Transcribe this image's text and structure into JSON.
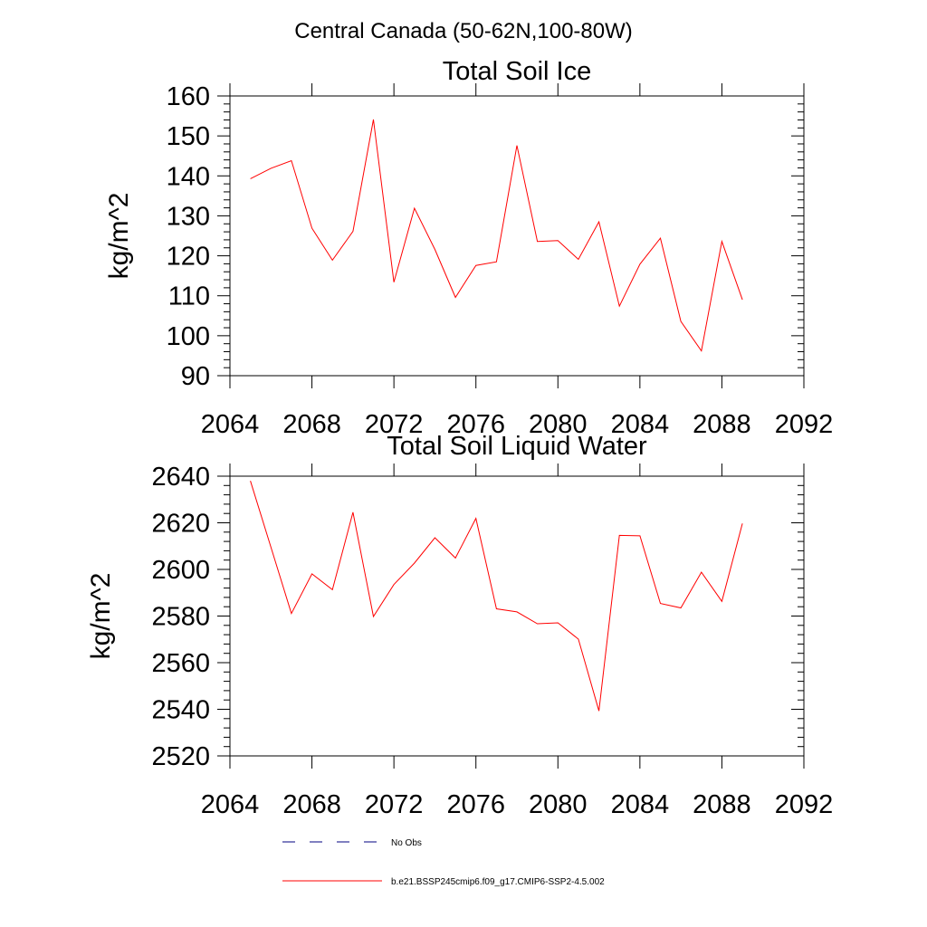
{
  "page_title": "Central Canada (50-62N,100-80W)",
  "colors": {
    "model": "#ff0000",
    "obs": "#000080",
    "axis": "#000000"
  },
  "chart_data": [
    {
      "type": "line",
      "title": "Total Soil Ice",
      "ylabel": "kg/m^2",
      "xlabel": "",
      "xlim": [
        2064,
        2092
      ],
      "ylim": [
        90,
        160
      ],
      "xticks": [
        2064,
        2068,
        2072,
        2076,
        2080,
        2084,
        2088,
        2092
      ],
      "yticks": [
        90,
        100,
        110,
        120,
        130,
        140,
        150,
        160
      ],
      "x": [
        2065,
        2066,
        2067,
        2068,
        2069,
        2070,
        2071,
        2072,
        2073,
        2074,
        2075,
        2076,
        2077,
        2078,
        2079,
        2080,
        2081,
        2082,
        2083,
        2084,
        2085,
        2086,
        2087,
        2088,
        2089
      ],
      "series": [
        {
          "name": "b.e21.BSSP245cmip6.f09_g17.CMIP6-SSP2-4.5.002",
          "values": [
            139.3,
            141.9,
            143.8,
            126.9,
            118.9,
            126.1,
            154.1,
            113.4,
            131.9,
            121.6,
            109.6,
            117.6,
            118.5,
            147.6,
            123.6,
            123.8,
            119.1,
            128.5,
            107.4,
            117.9,
            124.4,
            103.6,
            96.2,
            123.6,
            109.0
          ]
        }
      ]
    },
    {
      "type": "line",
      "title": "Total Soil Liquid Water",
      "ylabel": "kg/m^2",
      "xlabel": "",
      "xlim": [
        2064,
        2092
      ],
      "ylim": [
        2520,
        2640
      ],
      "xticks": [
        2064,
        2068,
        2072,
        2076,
        2080,
        2084,
        2088,
        2092
      ],
      "yticks": [
        2520,
        2540,
        2560,
        2580,
        2600,
        2620,
        2640
      ],
      "x": [
        2065,
        2066,
        2067,
        2068,
        2069,
        2070,
        2071,
        2072,
        2073,
        2074,
        2075,
        2076,
        2077,
        2078,
        2079,
        2080,
        2081,
        2082,
        2083,
        2084,
        2085,
        2086,
        2087,
        2088,
        2089
      ],
      "series": [
        {
          "name": "b.e21.BSSP245cmip6.f09_g17.CMIP6-SSP2-4.5.002",
          "values": [
            2638.0,
            2609.5,
            2581.1,
            2598.1,
            2591.3,
            2624.5,
            2579.8,
            2593.5,
            2602.7,
            2613.6,
            2604.9,
            2621.9,
            2583.1,
            2581.8,
            2576.7,
            2577.1,
            2570.1,
            2539.3,
            2614.6,
            2614.4,
            2585.4,
            2583.5,
            2598.8,
            2586.3,
            2619.7
          ]
        }
      ]
    }
  ],
  "legend": [
    {
      "label": "No Obs",
      "style": "dashed",
      "color": "#000080"
    },
    {
      "label": "b.e21.BSSP245cmip6.f09_g17.CMIP6-SSP2-4.5.002",
      "style": "solid",
      "color": "#ff0000"
    }
  ]
}
